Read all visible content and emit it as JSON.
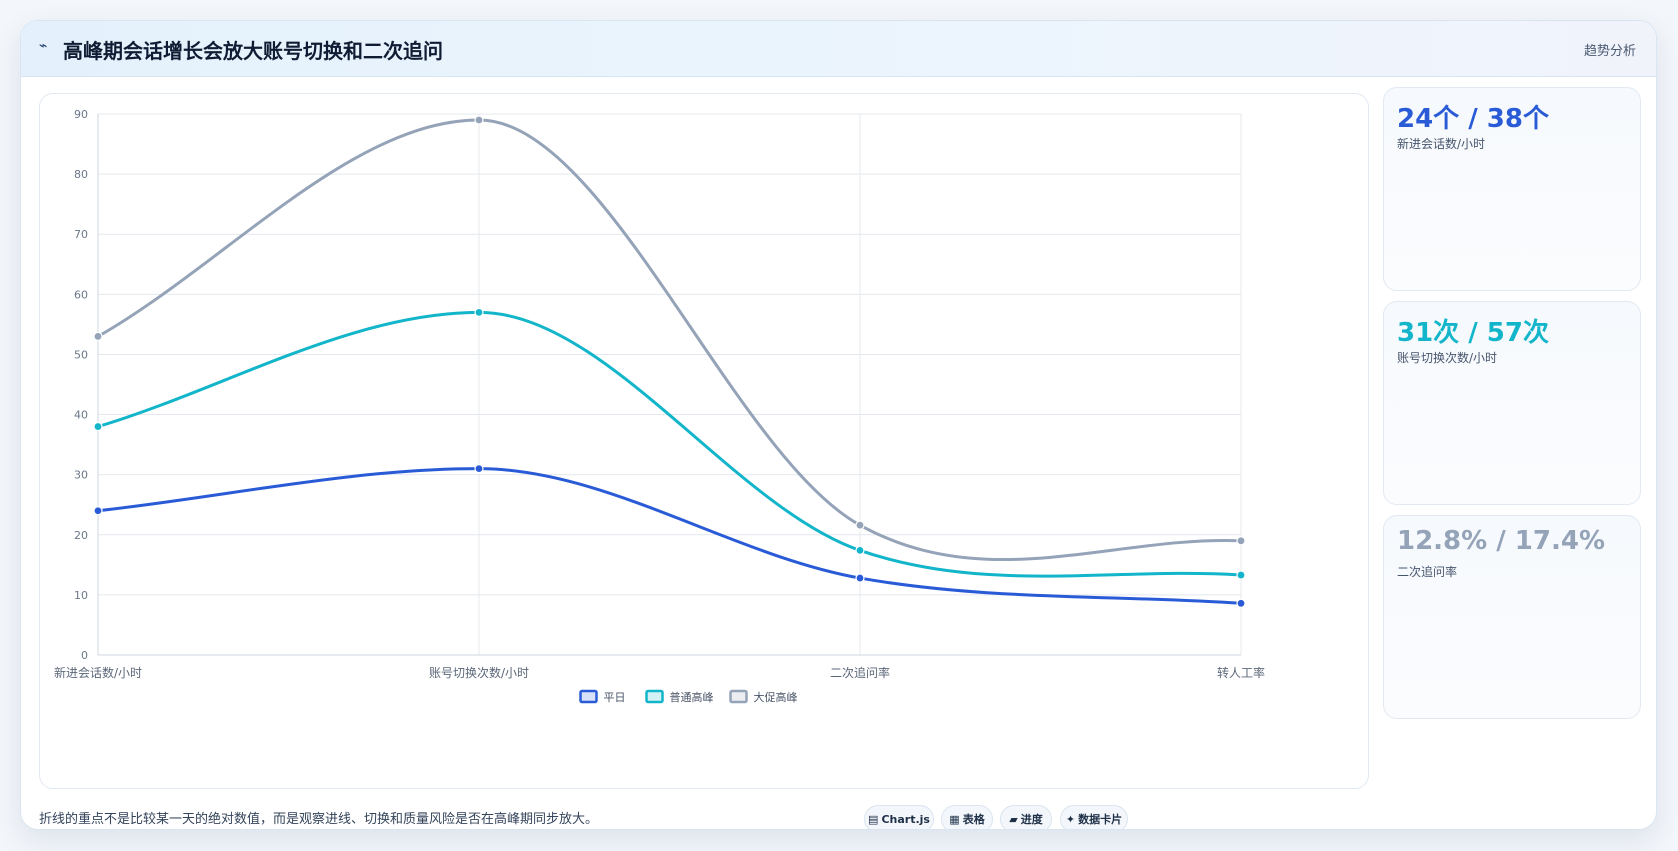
{
  "header": {
    "icon": "⌁",
    "title": "高峰期会话增长会放大账号切换和二次追问",
    "tag": "趋势分析"
  },
  "stats": [
    {
      "value": "24个 / 38个",
      "label": "新进会话数/小时",
      "color": "#2a5bd7"
    },
    {
      "value": "31次 / 57次",
      "label": "账号切换次数/小时",
      "color": "#12b5c9"
    },
    {
      "value": "12.8% / 17.4%",
      "label": "二次追问率",
      "color": "#94a3b8"
    }
  ],
  "footer": {
    "note": "折线的重点不是比较某一天的绝对数值，而是观察进线、切换和质量风险是否在高峰期同步放大。",
    "pills": [
      {
        "icon": "▤",
        "label": "Chart.js"
      },
      {
        "icon": "▦",
        "label": "表格"
      },
      {
        "icon": "▰",
        "label": "进度"
      },
      {
        "icon": "✦",
        "label": "数据卡片"
      }
    ]
  },
  "chart_data": {
    "type": "line",
    "categories": [
      "新进会话数/小时",
      "账号切换次数/小时",
      "二次追问率",
      "转人工率"
    ],
    "series": [
      {
        "name": "平日",
        "values": [
          24,
          31,
          12.8,
          8.6
        ],
        "color": "#2a5bd7"
      },
      {
        "name": "普通高峰",
        "values": [
          38,
          57,
          17.4,
          13.3
        ],
        "color": "#12b5c9"
      },
      {
        "name": "大促高峰",
        "values": [
          53,
          89,
          21.6,
          19
        ],
        "color": "#94a3b8"
      }
    ],
    "ylim": [
      0,
      90
    ],
    "yticks": [
      0,
      10,
      20,
      30,
      40,
      50,
      60,
      70,
      80,
      90
    ],
    "grid": true,
    "legend": "bottom",
    "smooth": true
  }
}
